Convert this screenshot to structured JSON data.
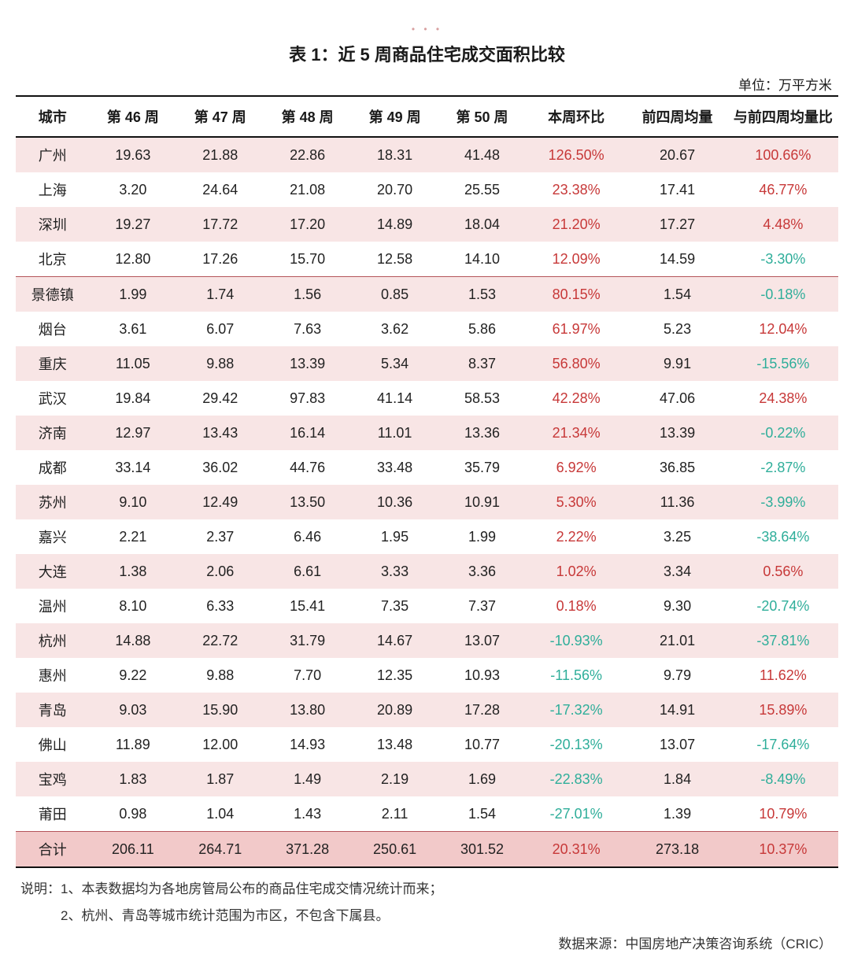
{
  "decor_dots": "• • •",
  "title": "表 1：近 5 周商品住宅成交面积比较",
  "unit_label": "单位：万平方米",
  "columns": [
    "城市",
    "第 46 周",
    "第 47 周",
    "第 48 周",
    "第 49 周",
    "第 50 周",
    "本周环比",
    "前四周均量",
    "与前四周均量比"
  ],
  "styling": {
    "stripe_color": "#f8e5e5",
    "total_bg": "#f2c9c9",
    "border_strong": "#111111",
    "section_border": "#b4555b",
    "positive_color": "#c73838",
    "negative_color": "#2fae9a",
    "font_size_pt": 18,
    "title_font_size_pt": 22
  },
  "rows": [
    {
      "city": "广州",
      "w46": "19.63",
      "w47": "21.88",
      "w48": "22.86",
      "w49": "18.31",
      "w50": "41.48",
      "wow": "126.50%",
      "avg4": "20.67",
      "vs4": "100.66%",
      "stripe": true
    },
    {
      "city": "上海",
      "w46": "3.20",
      "w47": "24.64",
      "w48": "21.08",
      "w49": "20.70",
      "w50": "25.55",
      "wow": "23.38%",
      "avg4": "17.41",
      "vs4": "46.77%",
      "stripe": false
    },
    {
      "city": "深圳",
      "w46": "19.27",
      "w47": "17.72",
      "w48": "17.20",
      "w49": "14.89",
      "w50": "18.04",
      "wow": "21.20%",
      "avg4": "17.27",
      "vs4": "4.48%",
      "stripe": true
    },
    {
      "city": "北京",
      "w46": "12.80",
      "w47": "17.26",
      "w48": "15.70",
      "w49": "12.58",
      "w50": "14.10",
      "wow": "12.09%",
      "avg4": "14.59",
      "vs4": "-3.30%",
      "stripe": false,
      "section_end": true
    },
    {
      "city": "景德镇",
      "w46": "1.99",
      "w47": "1.74",
      "w48": "1.56",
      "w49": "0.85",
      "w50": "1.53",
      "wow": "80.15%",
      "avg4": "1.54",
      "vs4": "-0.18%",
      "stripe": true
    },
    {
      "city": "烟台",
      "w46": "3.61",
      "w47": "6.07",
      "w48": "7.63",
      "w49": "3.62",
      "w50": "5.86",
      "wow": "61.97%",
      "avg4": "5.23",
      "vs4": "12.04%",
      "stripe": false
    },
    {
      "city": "重庆",
      "w46": "11.05",
      "w47": "9.88",
      "w48": "13.39",
      "w49": "5.34",
      "w50": "8.37",
      "wow": "56.80%",
      "avg4": "9.91",
      "vs4": "-15.56%",
      "stripe": true
    },
    {
      "city": "武汉",
      "w46": "19.84",
      "w47": "29.42",
      "w48": "97.83",
      "w49": "41.14",
      "w50": "58.53",
      "wow": "42.28%",
      "avg4": "47.06",
      "vs4": "24.38%",
      "stripe": false
    },
    {
      "city": "济南",
      "w46": "12.97",
      "w47": "13.43",
      "w48": "16.14",
      "w49": "11.01",
      "w50": "13.36",
      "wow": "21.34%",
      "avg4": "13.39",
      "vs4": "-0.22%",
      "stripe": true
    },
    {
      "city": "成都",
      "w46": "33.14",
      "w47": "36.02",
      "w48": "44.76",
      "w49": "33.48",
      "w50": "35.79",
      "wow": "6.92%",
      "avg4": "36.85",
      "vs4": "-2.87%",
      "stripe": false
    },
    {
      "city": "苏州",
      "w46": "9.10",
      "w47": "12.49",
      "w48": "13.50",
      "w49": "10.36",
      "w50": "10.91",
      "wow": "5.30%",
      "avg4": "11.36",
      "vs4": "-3.99%",
      "stripe": true
    },
    {
      "city": "嘉兴",
      "w46": "2.21",
      "w47": "2.37",
      "w48": "6.46",
      "w49": "1.95",
      "w50": "1.99",
      "wow": "2.22%",
      "avg4": "3.25",
      "vs4": "-38.64%",
      "stripe": false
    },
    {
      "city": "大连",
      "w46": "1.38",
      "w47": "2.06",
      "w48": "6.61",
      "w49": "3.33",
      "w50": "3.36",
      "wow": "1.02%",
      "avg4": "3.34",
      "vs4": "0.56%",
      "stripe": true
    },
    {
      "city": "温州",
      "w46": "8.10",
      "w47": "6.33",
      "w48": "15.41",
      "w49": "7.35",
      "w50": "7.37",
      "wow": "0.18%",
      "avg4": "9.30",
      "vs4": "-20.74%",
      "stripe": false
    },
    {
      "city": "杭州",
      "w46": "14.88",
      "w47": "22.72",
      "w48": "31.79",
      "w49": "14.67",
      "w50": "13.07",
      "wow": "-10.93%",
      "avg4": "21.01",
      "vs4": "-37.81%",
      "stripe": true
    },
    {
      "city": "惠州",
      "w46": "9.22",
      "w47": "9.88",
      "w48": "7.70",
      "w49": "12.35",
      "w50": "10.93",
      "wow": "-11.56%",
      "avg4": "9.79",
      "vs4": "11.62%",
      "stripe": false
    },
    {
      "city": "青岛",
      "w46": "9.03",
      "w47": "15.90",
      "w48": "13.80",
      "w49": "20.89",
      "w50": "17.28",
      "wow": "-17.32%",
      "avg4": "14.91",
      "vs4": "15.89%",
      "stripe": true
    },
    {
      "city": "佛山",
      "w46": "11.89",
      "w47": "12.00",
      "w48": "14.93",
      "w49": "13.48",
      "w50": "10.77",
      "wow": "-20.13%",
      "avg4": "13.07",
      "vs4": "-17.64%",
      "stripe": false
    },
    {
      "city": "宝鸡",
      "w46": "1.83",
      "w47": "1.87",
      "w48": "1.49",
      "w49": "2.19",
      "w50": "1.69",
      "wow": "-22.83%",
      "avg4": "1.84",
      "vs4": "-8.49%",
      "stripe": true
    },
    {
      "city": "莆田",
      "w46": "0.98",
      "w47": "1.04",
      "w48": "1.43",
      "w49": "2.11",
      "w50": "1.54",
      "wow": "-27.01%",
      "avg4": "1.39",
      "vs4": "10.79%",
      "stripe": false
    }
  ],
  "total": {
    "city": "合计",
    "w46": "206.11",
    "w47": "264.71",
    "w48": "371.28",
    "w49": "250.61",
    "w50": "301.52",
    "wow": "20.31%",
    "avg4": "273.18",
    "vs4": "10.37%"
  },
  "footnote_1": "说明：1、本表数据均为各地房管局公布的商品住宅成交情况统计而来；",
  "footnote_2": "　　　2、杭州、青岛等城市统计范围为市区，不包含下属县。",
  "source": "数据来源：中国房地产决策咨询系统（CRIC）"
}
